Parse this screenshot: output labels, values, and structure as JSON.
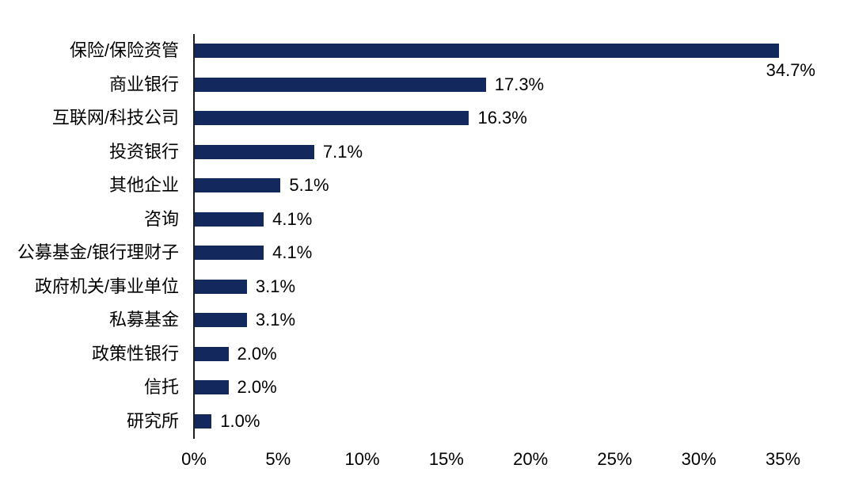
{
  "chart_data": {
    "type": "bar",
    "orientation": "horizontal",
    "title": "",
    "xlabel": "",
    "ylabel": "",
    "categories": [
      "保险/保险资管",
      "商业银行",
      "互联网/科技公司",
      "投资银行",
      "其他企业",
      "咨询",
      "公募基金/银行理财子",
      "政府机关/事业单位",
      "私募基金",
      "政策性银行",
      "信托",
      "研究所"
    ],
    "values": [
      34.7,
      17.3,
      16.3,
      7.1,
      5.1,
      4.1,
      4.1,
      3.1,
      3.1,
      2.0,
      2.0,
      1.0
    ],
    "value_labels": [
      "34.7%",
      "17.3%",
      "16.3%",
      "7.1%",
      "5.1%",
      "4.1%",
      "4.1%",
      "3.1%",
      "3.1%",
      "2.0%",
      "2.0%",
      "1.0%"
    ],
    "x_tick_labels": [
      "0%",
      "5%",
      "10%",
      "15%",
      "20%",
      "25%",
      "30%",
      "35%"
    ],
    "x_tick_values": [
      0,
      5,
      10,
      15,
      20,
      25,
      30,
      35
    ],
    "xlim": [
      0,
      35
    ],
    "grid": false,
    "legend_position": "none",
    "bar_color": "#13295e",
    "axis_color": "#1f1f1f",
    "text_color": "#000000",
    "first_value_label_position": "below-bar-end"
  }
}
